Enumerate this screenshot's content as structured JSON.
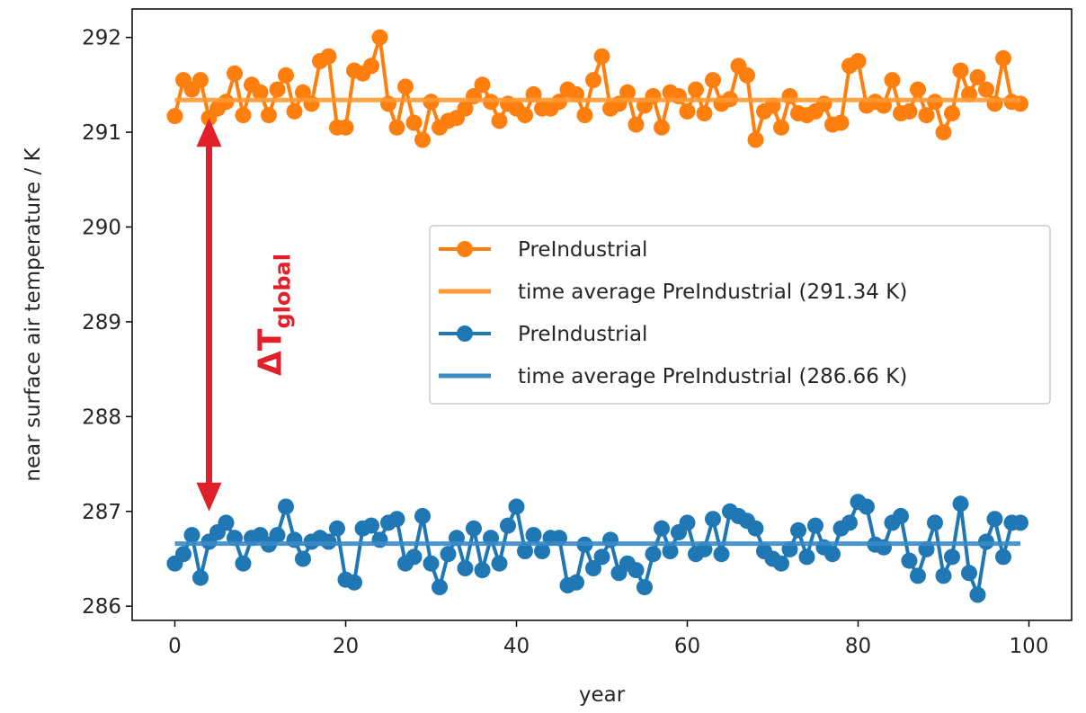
{
  "chart_data": {
    "type": "line",
    "title": "",
    "xlabel": "year",
    "ylabel": "near surface air temperature / K",
    "xlim": [
      -5,
      105
    ],
    "ylim": [
      285.85,
      292.3
    ],
    "xticks": [
      0,
      20,
      40,
      60,
      80,
      100
    ],
    "yticks": [
      286,
      287,
      288,
      289,
      290,
      291,
      292
    ],
    "grid": false,
    "legend_position": "center-right",
    "series": [
      {
        "name": "PreIndustrial",
        "style": "line-markers",
        "color": "#ff7f0e",
        "x": [
          0,
          1,
          2,
          3,
          4,
          5,
          6,
          7,
          8,
          9,
          10,
          11,
          12,
          13,
          14,
          15,
          16,
          17,
          18,
          19,
          20,
          21,
          22,
          23,
          24,
          25,
          26,
          27,
          28,
          29,
          30,
          31,
          32,
          33,
          34,
          35,
          36,
          37,
          38,
          39,
          40,
          41,
          42,
          43,
          44,
          45,
          46,
          47,
          48,
          49,
          50,
          51,
          52,
          53,
          54,
          55,
          56,
          57,
          58,
          59,
          60,
          61,
          62,
          63,
          64,
          65,
          66,
          67,
          68,
          69,
          70,
          71,
          72,
          73,
          74,
          75,
          76,
          77,
          78,
          79,
          80,
          81,
          82,
          83,
          84,
          85,
          86,
          87,
          88,
          89,
          90,
          91,
          92,
          93,
          94,
          95,
          96,
          97,
          98,
          99
        ],
        "y": [
          291.17,
          291.55,
          291.45,
          291.55,
          291.15,
          291.25,
          291.32,
          291.62,
          291.18,
          291.5,
          291.42,
          291.18,
          291.45,
          291.6,
          291.22,
          291.42,
          291.3,
          291.75,
          291.8,
          291.05,
          291.05,
          291.65,
          291.62,
          291.7,
          292.0,
          291.3,
          291.05,
          291.48,
          291.1,
          290.92,
          291.32,
          291.05,
          291.12,
          291.15,
          291.25,
          291.38,
          291.5,
          291.32,
          291.12,
          291.3,
          291.25,
          291.18,
          291.4,
          291.25,
          291.25,
          291.32,
          291.45,
          291.4,
          291.18,
          291.55,
          291.8,
          291.25,
          291.3,
          291.42,
          291.08,
          291.28,
          291.38,
          291.05,
          291.42,
          291.38,
          291.22,
          291.45,
          291.2,
          291.55,
          291.3,
          291.35,
          291.7,
          291.6,
          290.92,
          291.22,
          291.28,
          291.05,
          291.38,
          291.2,
          291.18,
          291.22,
          291.3,
          291.08,
          291.1,
          291.7,
          291.75,
          291.28,
          291.32,
          291.28,
          291.55,
          291.2,
          291.22,
          291.45,
          291.18,
          291.32,
          291.0,
          291.2,
          291.65,
          291.4,
          291.58,
          291.45,
          291.3,
          291.78,
          291.32,
          291.3
        ]
      },
      {
        "name": "time average PreIndustrial (291.34 K)",
        "style": "line",
        "color": "#ff9933",
        "x": [
          0,
          99
        ],
        "y": [
          291.34,
          291.34
        ]
      },
      {
        "name": "PreIndustrial",
        "style": "line-markers",
        "color": "#1f77b4",
        "x": [
          0,
          1,
          2,
          3,
          4,
          5,
          6,
          7,
          8,
          9,
          10,
          11,
          12,
          13,
          14,
          15,
          16,
          17,
          18,
          19,
          20,
          21,
          22,
          23,
          24,
          25,
          26,
          27,
          28,
          29,
          30,
          31,
          32,
          33,
          34,
          35,
          36,
          37,
          38,
          39,
          40,
          41,
          42,
          43,
          44,
          45,
          46,
          47,
          48,
          49,
          50,
          51,
          52,
          53,
          54,
          55,
          56,
          57,
          58,
          59,
          60,
          61,
          62,
          63,
          64,
          65,
          66,
          67,
          68,
          69,
          70,
          71,
          72,
          73,
          74,
          75,
          76,
          77,
          78,
          79,
          80,
          81,
          82,
          83,
          84,
          85,
          86,
          87,
          88,
          89,
          90,
          91,
          92,
          93,
          94,
          95,
          96,
          97,
          98,
          99
        ],
        "y": [
          286.45,
          286.55,
          286.75,
          286.3,
          286.68,
          286.78,
          286.88,
          286.72,
          286.45,
          286.72,
          286.75,
          286.65,
          286.75,
          287.05,
          286.7,
          286.5,
          286.68,
          286.72,
          286.68,
          286.82,
          286.28,
          286.25,
          286.82,
          286.85,
          286.7,
          286.88,
          286.92,
          286.45,
          286.52,
          286.95,
          286.45,
          286.2,
          286.55,
          286.72,
          286.4,
          286.82,
          286.38,
          286.72,
          286.45,
          286.85,
          287.05,
          286.58,
          286.75,
          286.58,
          286.72,
          286.72,
          286.22,
          286.25,
          286.65,
          286.4,
          286.52,
          286.7,
          286.35,
          286.45,
          286.38,
          286.2,
          286.55,
          286.82,
          286.58,
          286.78,
          286.88,
          286.55,
          286.6,
          286.92,
          286.55,
          287.0,
          286.95,
          286.9,
          286.82,
          286.58,
          286.5,
          286.45,
          286.6,
          286.8,
          286.52,
          286.85,
          286.62,
          286.55,
          286.82,
          286.88,
          287.1,
          287.05,
          286.65,
          286.62,
          286.88,
          286.95,
          286.48,
          286.32,
          286.6,
          286.88,
          286.32,
          286.52,
          287.08,
          286.35,
          286.12,
          286.68,
          286.92,
          286.52,
          286.88,
          286.88
        ]
      },
      {
        "name": "time average PreIndustrial (286.66 K)",
        "style": "line",
        "color": "#3a8ac8",
        "x": [
          0,
          99
        ],
        "y": [
          286.66,
          286.66
        ]
      }
    ],
    "annotation": {
      "text": "ΔT",
      "subscript": "global",
      "color": "#e0202a",
      "arrow_x": 4,
      "arrow_y": [
        287.0,
        291.15
      ]
    }
  }
}
